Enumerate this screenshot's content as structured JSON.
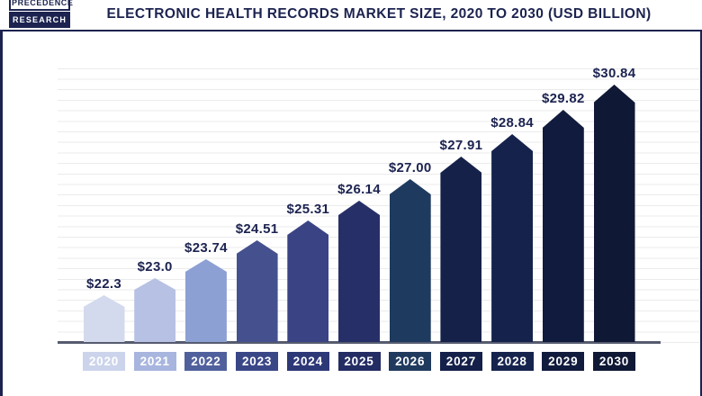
{
  "brand": {
    "line1": "PRECEDENCE",
    "line2": "RESEARCH"
  },
  "header": {
    "title": "ELECTRONIC HEALTH RECORDS MARKET SIZE, 2020 TO 2030 (USD BILLION)"
  },
  "chart_data": {
    "type": "bar",
    "title": "ELECTRONIC HEALTH RECORDS MARKET SIZE, 2020 TO 2030 (USD BILLION)",
    "xlabel": "",
    "ylabel": "",
    "unit": "USD Billion",
    "categories": [
      "2020",
      "2021",
      "2022",
      "2023",
      "2024",
      "2025",
      "2026",
      "2027",
      "2028",
      "2029",
      "2030"
    ],
    "values": [
      22.3,
      23.0,
      23.74,
      24.51,
      25.31,
      26.14,
      27.0,
      27.91,
      28.84,
      29.82,
      30.84
    ],
    "value_labels": [
      "$22.3",
      "$23.0",
      "$23.74",
      "$24.51",
      "$25.31",
      "$26.14",
      "$27.00",
      "$27.91",
      "$28.84",
      "$29.82",
      "$30.84"
    ],
    "ylim": [
      20.4,
      31.6
    ],
    "grid": true,
    "legend": false,
    "bar_colors": [
      "#d3daee",
      "#b6c1e3",
      "#8da0d4",
      "#45518e",
      "#3a4484",
      "#272f68",
      "#1f3a5f",
      "#152149",
      "#15234c",
      "#111b3d",
      "#0f1834"
    ],
    "tick_box_colors": [
      "#ccd4ec",
      "#a8b5de",
      "#50609d",
      "#3a4787",
      "#2d3877",
      "#232c63",
      "#203a5e",
      "#14204a",
      "#16244d",
      "#111b3d",
      "#0f1834"
    ]
  },
  "colors": {
    "accent": "#1c2350",
    "axis": "#565b6f",
    "grid": "#ebebeb",
    "background": "#ffffff"
  }
}
